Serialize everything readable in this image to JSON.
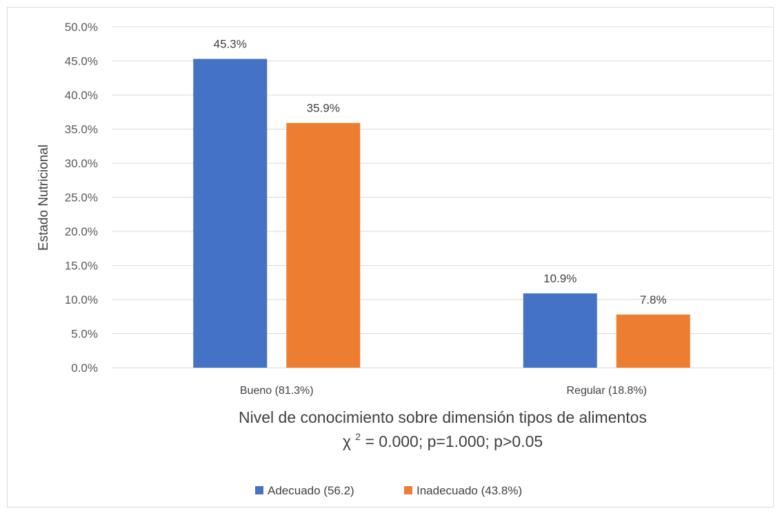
{
  "chart_data": {
    "type": "bar",
    "categories": [
      "Bueno (81.3%)",
      "Regular (18.8%)"
    ],
    "series": [
      {
        "name": "Adecuado (56.2)",
        "values": [
          45.3,
          10.9
        ],
        "labels": [
          "45.3%",
          "10.9%"
        ],
        "color": "#4472c4"
      },
      {
        "name": "Inadecuado (43.8%)",
        "values": [
          35.9,
          7.8
        ],
        "labels": [
          "35.9%",
          "7.8%"
        ],
        "color": "#ed7d31"
      }
    ],
    "ylabel": "Estado Nutricional",
    "xlabel": "Nivel de conocimiento sobre dimensión tipos de alimentos",
    "subtitle": {
      "prefix": "χ ",
      "superscript": "2",
      "rest": " = 0.000; p=1.000; p>0.05"
    },
    "ylim": [
      0,
      50
    ],
    "yticks": [
      "0.0%",
      "5.0%",
      "10.0%",
      "15.0%",
      "20.0%",
      "25.0%",
      "30.0%",
      "35.0%",
      "40.0%",
      "45.0%",
      "50.0%"
    ],
    "grid": true,
    "legend_position": "bottom",
    "gridline_color": "#d9d9d9"
  }
}
